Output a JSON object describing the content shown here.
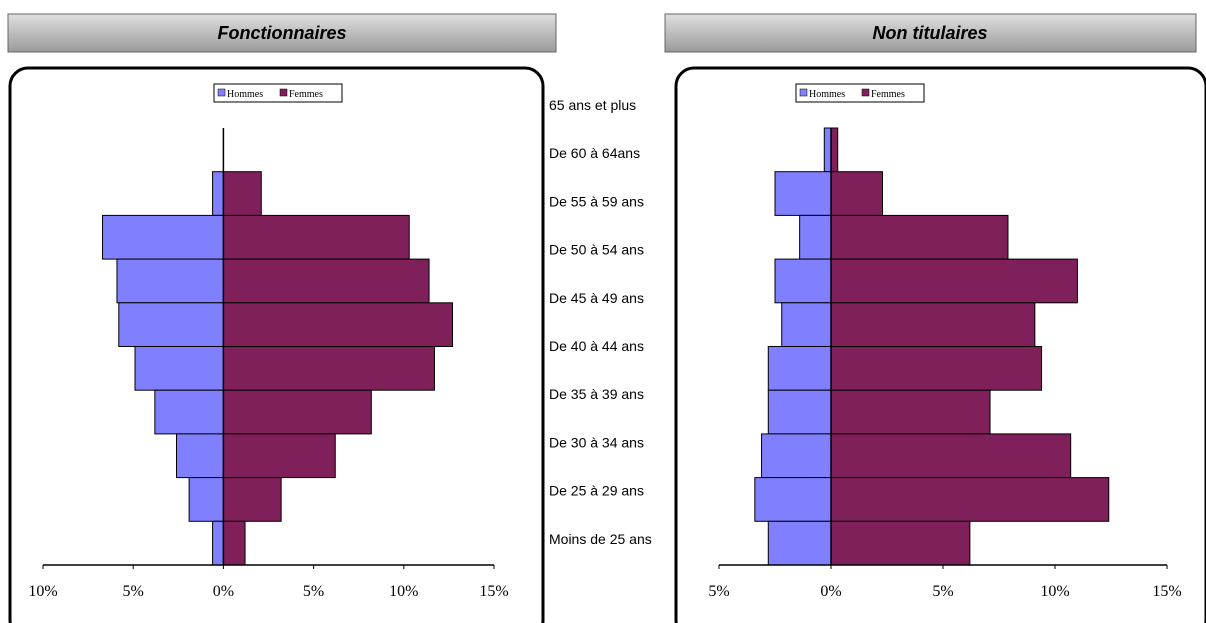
{
  "chart_data": [
    {
      "type": "bar",
      "orientation": "horizontal",
      "title": "Fonctionnaires",
      "categories": [
        "65 ans et plus",
        "De 60 à 64ans",
        "De 55 à 59 ans",
        "De 50 à 54 ans",
        "De 45 à 49 ans",
        "De 40 à 44 ans",
        "De 35 à 39 ans",
        "De 30 à 34 ans",
        "De 25 à 29 ans",
        "Moins de 25 ans"
      ],
      "series": [
        {
          "name": "Hommes",
          "color": "#8080ff",
          "values": [
            0,
            -0.6,
            -6.7,
            -5.9,
            -5.8,
            -4.9,
            -3.8,
            -2.6,
            -1.9,
            -0.6
          ]
        },
        {
          "name": "Femmes",
          "color": "#80205a",
          "values": [
            0,
            2.1,
            10.3,
            11.4,
            12.7,
            11.7,
            8.2,
            6.2,
            3.2,
            1.2
          ]
        }
      ],
      "xlim": [
        -10,
        15
      ],
      "xticks": [
        {
          "value": -10,
          "label": "10%"
        },
        {
          "value": -5,
          "label": "5%"
        },
        {
          "value": 0,
          "label": "0%"
        },
        {
          "value": 5,
          "label": "5%"
        },
        {
          "value": 10,
          "label": "10%"
        },
        {
          "value": 15,
          "label": "15%"
        }
      ],
      "legend": "top"
    },
    {
      "type": "bar",
      "orientation": "horizontal",
      "title": "Non titulaires",
      "series": [
        {
          "name": "Hommes",
          "color": "#8080ff",
          "values": [
            -0.3,
            -2.5,
            -1.4,
            -2.5,
            -2.2,
            -2.8,
            -2.8,
            -3.1,
            -3.4,
            -2.8
          ]
        },
        {
          "name": "Femmes",
          "color": "#80205a",
          "values": [
            0.3,
            2.3,
            7.9,
            11.0,
            9.1,
            9.4,
            7.1,
            10.7,
            12.4,
            6.2
          ]
        }
      ],
      "xlim": [
        -5,
        15
      ],
      "xticks": [
        {
          "value": -5,
          "label": "5%"
        },
        {
          "value": 0,
          "label": "0%"
        },
        {
          "value": 5,
          "label": "5%"
        },
        {
          "value": 10,
          "label": "10%"
        },
        {
          "value": 15,
          "label": "15%"
        }
      ],
      "legend": "top"
    }
  ]
}
